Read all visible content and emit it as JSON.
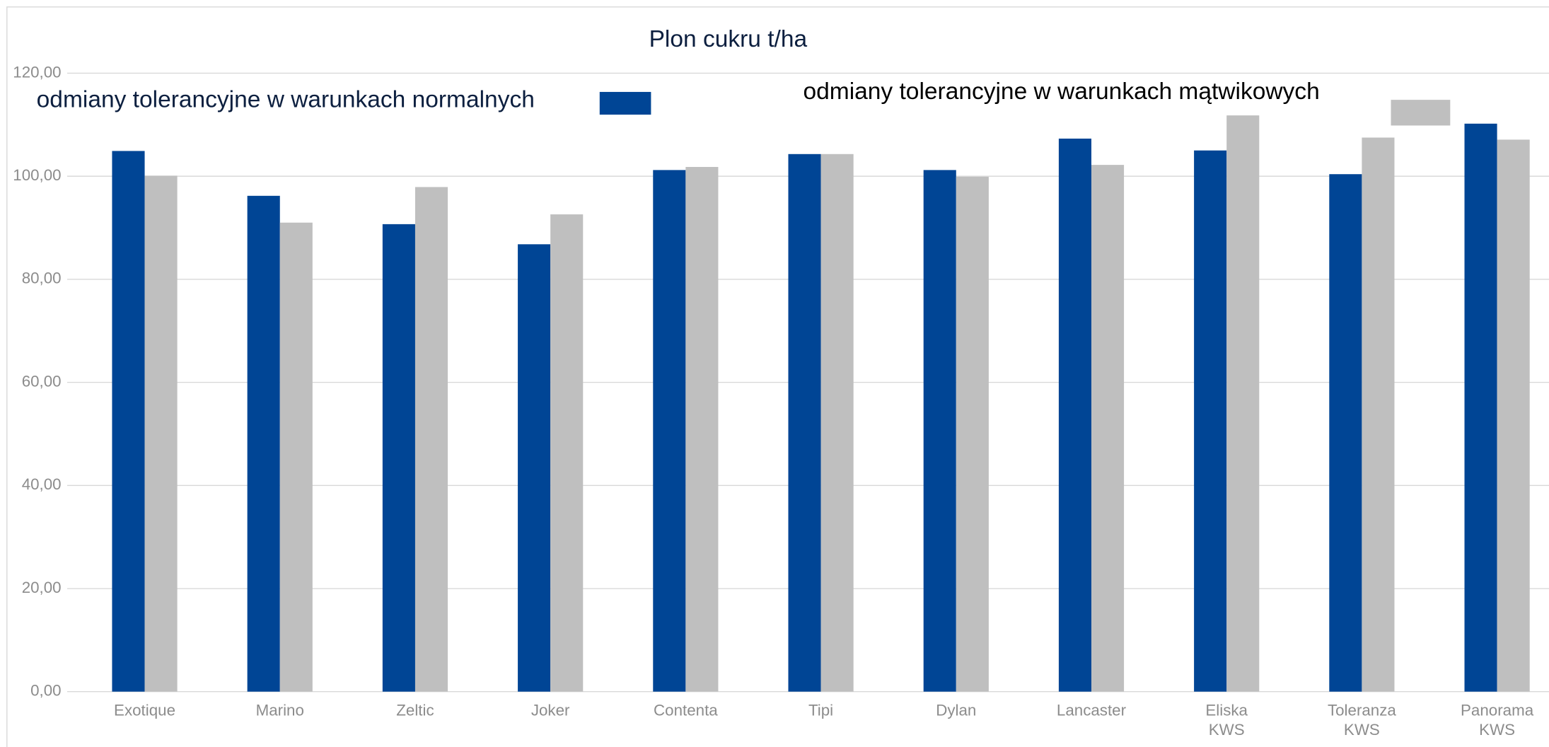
{
  "chart_data": {
    "type": "bar",
    "title": "Plon cukru t/ha",
    "categories": [
      "Exotique",
      "Marino",
      "Zeltic",
      "Joker",
      "Contenta",
      "Tipi",
      "Dylan",
      "Lancaster",
      "Eliska KWS",
      "Toleranza KWS",
      "Panorama KWS"
    ],
    "series": [
      {
        "name": "odmiany tolerancyjne w warunkach normalnych",
        "color": "#004595",
        "values": [
          104.9,
          96.2,
          90.7,
          86.8,
          101.2,
          104.3,
          101.2,
          107.3,
          105.0,
          100.4,
          110.2
        ]
      },
      {
        "name": "odmiany tolerancyjne w warunkach mątwikowych",
        "color": "#bfbfbf",
        "values": [
          100.1,
          91.0,
          97.9,
          92.6,
          101.8,
          104.3,
          99.9,
          102.2,
          111.8,
          107.5,
          107.1
        ]
      }
    ],
    "ylim": [
      0,
      120
    ],
    "yticks": [
      {
        "value": 0,
        "label": "0,00"
      },
      {
        "value": 20,
        "label": "20,00"
      },
      {
        "value": 40,
        "label": "40,00"
      },
      {
        "value": 60,
        "label": "60,00"
      },
      {
        "value": 80,
        "label": "80,00"
      },
      {
        "value": 100,
        "label": "100,00"
      },
      {
        "value": 120,
        "label": "120,00"
      }
    ],
    "grid": true
  }
}
